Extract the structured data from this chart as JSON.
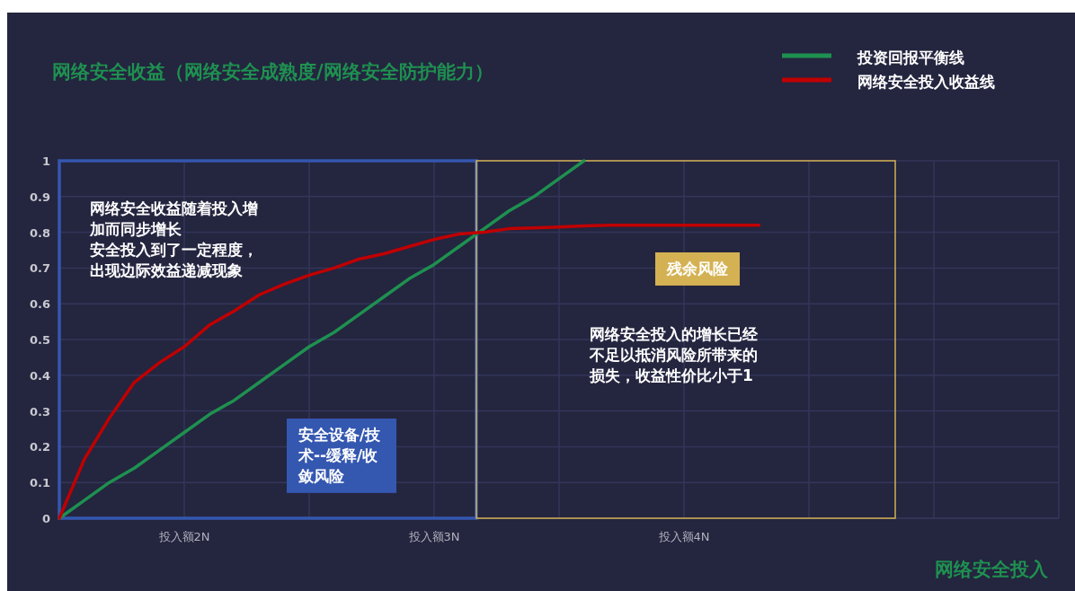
{
  "chart_data": {
    "type": "line",
    "title": "网络安全收益（网络安全成熟度/网络安全防护能力）",
    "xlabel": "网络安全投入",
    "categories": [
      null,
      null,
      null,
      null,
      null,
      "投入额2N",
      null,
      null,
      null,
      null,
      null,
      null,
      null,
      null,
      null,
      "投入额3N",
      null,
      null,
      null,
      null,
      null,
      null,
      null,
      null,
      null,
      "投入额4N",
      null,
      null,
      null,
      null,
      null,
      null,
      null,
      null,
      null,
      null,
      null,
      null,
      null,
      null,
      null
    ],
    "ylim": [
      0,
      1
    ],
    "yticks": [
      0,
      0.1,
      0.2,
      0.3,
      0.4,
      0.5,
      0.6,
      0.7,
      0.8,
      0.9,
      1
    ],
    "grid": true,
    "legend": "top right",
    "series": [
      {
        "name": "投资回报平衡线",
        "color": "#1e9150",
        "values": [
          0,
          0.05,
          0.1,
          0.14,
          0.19,
          0.24,
          0.29,
          0.33,
          0.38,
          0.43,
          0.48,
          0.52,
          0.57,
          0.62,
          0.67,
          0.71,
          0.76,
          0.81,
          0.86,
          0.9,
          0.95,
          1,
          null,
          null,
          null,
          null,
          null,
          null,
          null,
          null,
          null,
          null,
          null,
          null,
          null,
          null,
          null,
          null,
          null,
          null,
          null
        ]
      },
      {
        "name": "网络安全投入收益线",
        "color": "#c00000",
        "values": [
          0,
          0.165,
          0.28,
          0.38,
          0.435,
          0.48,
          0.54,
          0.58,
          0.625,
          0.655,
          0.68,
          0.7,
          0.725,
          0.74,
          0.76,
          0.78,
          0.795,
          0.8,
          0.81,
          0.812,
          0.815,
          0.818,
          0.82,
          0.82,
          0.82,
          0.82,
          0.82,
          0.82,
          0.82,
          null,
          null,
          null,
          null,
          null,
          null,
          null,
          null,
          null,
          null,
          null,
          null
        ]
      }
    ],
    "annotations": [
      "网络安全收益随着投入增加而同步增长",
      "安全投入到了一定程度，出现边际效益递减现象",
      "安全设备/技术--缓释/收敛风险",
      "残余风险",
      "网络安全投入的增长已经不足以抵消风险所带来的损失，收益性价比小于1"
    ]
  }
}
